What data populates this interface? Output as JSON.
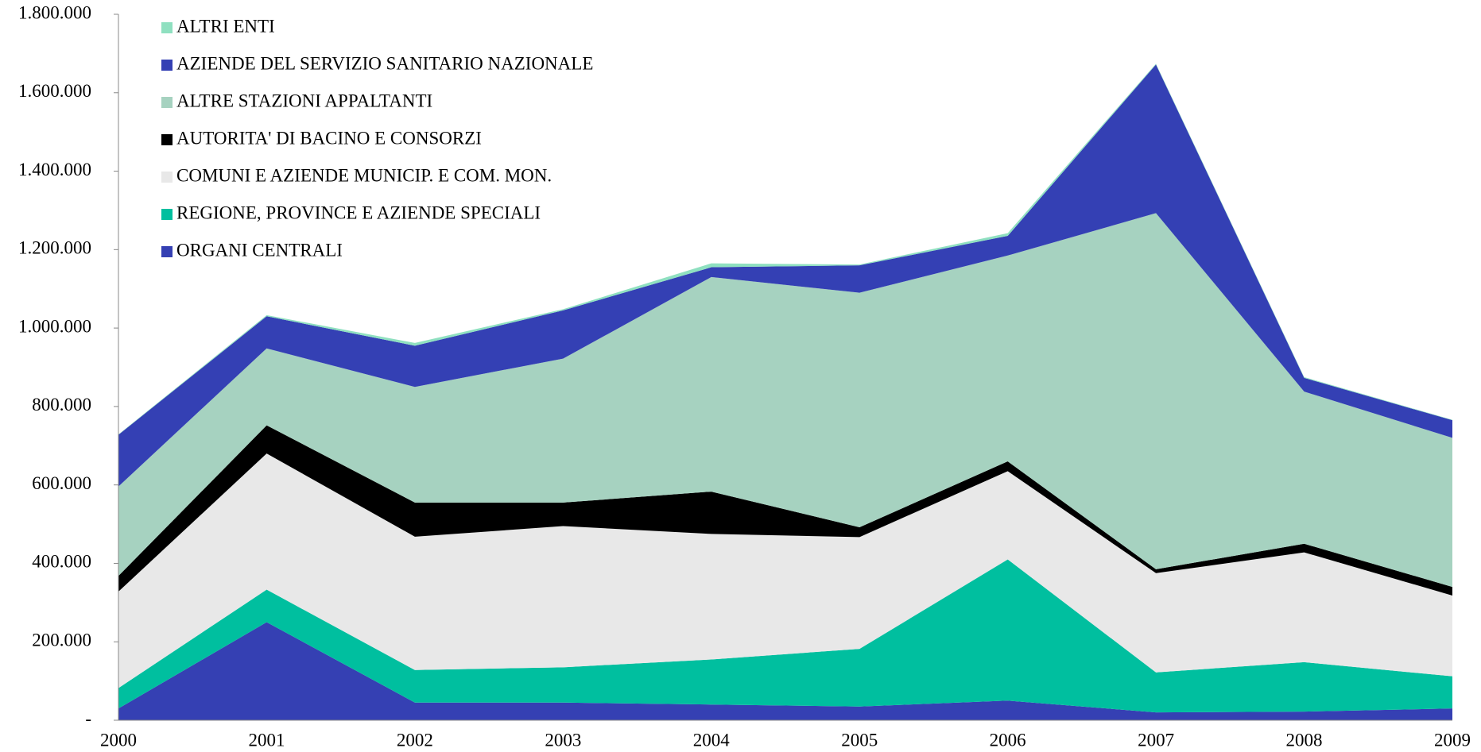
{
  "chart_data": {
    "type": "stacked_area",
    "categories": [
      "2000",
      "2001",
      "2002",
      "2003",
      "2004",
      "2005",
      "2006",
      "2007",
      "2008",
      "2009"
    ],
    "series": [
      {
        "name": "ORGANI CENTRALI",
        "color": "#3540b3",
        "values": [
          30000,
          250000,
          45000,
          45000,
          40000,
          35000,
          50000,
          20000,
          22000,
          30000
        ]
      },
      {
        "name": "REGIONE, PROVINCE E AZIENDE SPECIALI",
        "color": "#00bf9f",
        "values": [
          52000,
          83000,
          83000,
          90000,
          115000,
          147000,
          360000,
          102000,
          126000,
          82000
        ]
      },
      {
        "name": "COMUNI E AZIENDE MUNICIP. E COM. MON.",
        "color": "#e8e8e8",
        "values": [
          246000,
          347000,
          340000,
          360000,
          320000,
          285000,
          225000,
          253000,
          280000,
          206000
        ]
      },
      {
        "name": "AUTORITA' DI BACINO E CONSORZI",
        "color": "#000000",
        "values": [
          40000,
          72000,
          87000,
          60000,
          108000,
          25000,
          25000,
          10000,
          22000,
          22000
        ]
      },
      {
        "name": "ALTRE STAZIONI APPALTANTI",
        "color": "#a6d2c0",
        "values": [
          228000,
          196000,
          295000,
          367000,
          547000,
          598000,
          525000,
          908000,
          388000,
          380000
        ]
      },
      {
        "name": "AZIENDE DEL SERVIZIO SANITARIO NAZIONALE",
        "color": "#3440b4",
        "values": [
          132000,
          82000,
          105000,
          123000,
          25000,
          70000,
          50000,
          379000,
          35000,
          45000
        ]
      },
      {
        "name": "ALTRI ENTI",
        "color": "#8fe0c0",
        "values": [
          1000,
          3000,
          7000,
          3000,
          10000,
          2000,
          7000,
          2000,
          2000,
          1000
        ]
      }
    ],
    "ylim": [
      0,
      1800000
    ],
    "yticks": [
      {
        "value": 0,
        "label": "-"
      },
      {
        "value": 200000,
        "label": "200.000"
      },
      {
        "value": 400000,
        "label": "400.000"
      },
      {
        "value": 600000,
        "label": "600.000"
      },
      {
        "value": 800000,
        "label": "800.000"
      },
      {
        "value": 1000000,
        "label": "1.000.000"
      },
      {
        "value": 1200000,
        "label": "1.200.000"
      },
      {
        "value": 1400000,
        "label": "1.400.000"
      },
      {
        "value": 1600000,
        "label": "1.600.000"
      },
      {
        "value": 1800000,
        "label": "1.800.000"
      }
    ],
    "grid": false,
    "legend": "top-left"
  }
}
